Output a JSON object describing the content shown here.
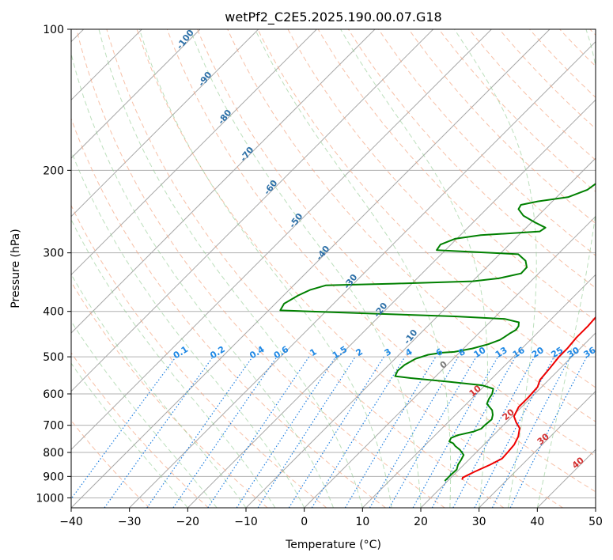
{
  "chart_data": {
    "type": "line",
    "title": "wetPf2_C2E5.2025.190.00.07.G18",
    "xlabel": "Temperature (°C)",
    "ylabel": "Pressure (hPa)",
    "xlim": [
      -40,
      50
    ],
    "ylim": [
      1050,
      100
    ],
    "y_scale": "log",
    "x_ticks": [
      "−40",
      "−30",
      "−20",
      "−10",
      "0",
      "10",
      "20",
      "30",
      "40",
      "50"
    ],
    "x_tick_values": [
      -40,
      -30,
      -20,
      -10,
      0,
      10,
      20,
      30,
      40,
      50
    ],
    "y_ticks": [
      "100",
      "200",
      "300",
      "400",
      "500",
      "600",
      "700",
      "800",
      "900",
      "1000"
    ],
    "y_tick_values": [
      100,
      200,
      300,
      400,
      500,
      600,
      700,
      800,
      900,
      1000
    ],
    "grid": true,
    "series": [
      {
        "role": "temperature",
        "color": "#ee0000",
        "points": [
          [
            22.3,
            915
          ],
          [
            22,
            905
          ],
          [
            23,
            880
          ],
          [
            24.5,
            850
          ],
          [
            25.5,
            825
          ],
          [
            25.4,
            800
          ],
          [
            25.2,
            770
          ],
          [
            24.5,
            740
          ],
          [
            23.3,
            710
          ],
          [
            21.7,
            690
          ],
          [
            20.3,
            670
          ],
          [
            19.5,
            640
          ],
          [
            19.5,
            610
          ],
          [
            19.3,
            580
          ],
          [
            18.5,
            560
          ],
          [
            18.2,
            530
          ],
          [
            17.8,
            500
          ],
          [
            17.8,
            480
          ],
          [
            17.5,
            455
          ],
          [
            17.5,
            430
          ],
          [
            17.3,
            410
          ],
          [
            17.8,
            398
          ],
          [
            17.8,
            390
          ],
          [
            17.2,
            380
          ],
          [
            16.2,
            370
          ],
          [
            15,
            358
          ],
          [
            13.7,
            345
          ],
          [
            12.7,
            332
          ],
          [
            11.7,
            318
          ],
          [
            10.8,
            300
          ],
          [
            10.2,
            285
          ],
          [
            9.6,
            270
          ],
          [
            8.8,
            255
          ],
          [
            7.8,
            243
          ],
          [
            6.8,
            232
          ],
          [
            5.8,
            222
          ],
          [
            4.9,
            212
          ],
          [
            4.1,
            202
          ],
          [
            3.2,
            193
          ],
          [
            2.5,
            185
          ],
          [
            1.8,
            177
          ],
          [
            1.3,
            170
          ],
          [
            0.8,
            163
          ],
          [
            0.3,
            155
          ],
          [
            -0.2,
            148
          ],
          [
            -0.6,
            142
          ],
          [
            -1.2,
            136
          ],
          [
            -1.6,
            130
          ],
          [
            -1.6,
            125
          ],
          [
            -1.1,
            120
          ],
          [
            -0.1,
            116
          ],
          [
            1.4,
            112
          ],
          [
            3.1,
            109
          ],
          [
            4.9,
            106
          ],
          [
            6.3,
            103
          ],
          [
            7.2,
            100
          ]
        ]
      },
      {
        "role": "dewpoint",
        "color": "#008000",
        "points": [
          [
            19.5,
            920
          ],
          [
            19.5,
            905
          ],
          [
            19.5,
            890
          ],
          [
            19.6,
            870
          ],
          [
            19,
            850
          ],
          [
            18.7,
            830
          ],
          [
            18.3,
            810
          ],
          [
            16.8,
            790
          ],
          [
            15.3,
            775
          ],
          [
            14.5,
            765
          ],
          [
            13.5,
            758
          ],
          [
            13.2,
            745
          ],
          [
            13.9,
            735
          ],
          [
            16,
            722
          ],
          [
            16.8,
            712
          ],
          [
            16.8,
            700
          ],
          [
            17,
            680
          ],
          [
            16.4,
            665
          ],
          [
            15.5,
            650
          ],
          [
            14.5,
            640
          ],
          [
            13.5,
            630
          ],
          [
            13,
            615
          ],
          [
            12.7,
            600
          ],
          [
            12,
            585
          ],
          [
            9.5,
            575
          ],
          [
            3,
            565
          ],
          [
            -4,
            555
          ],
          [
            -7,
            550
          ],
          [
            -7.5,
            535
          ],
          [
            -7.3,
            520
          ],
          [
            -6.5,
            505
          ],
          [
            -5,
            495
          ],
          [
            -3,
            490
          ],
          [
            -1,
            488
          ],
          [
            1.5,
            480
          ],
          [
            3.5,
            470
          ],
          [
            4.8,
            460
          ],
          [
            5.4,
            445
          ],
          [
            5.8,
            438
          ],
          [
            5.6,
            430
          ],
          [
            5,
            422
          ],
          [
            2,
            415
          ],
          [
            -7,
            410
          ],
          [
            -20,
            405
          ],
          [
            -38,
            398
          ],
          [
            -38.5,
            385
          ],
          [
            -37.5,
            370
          ],
          [
            -36.4,
            360
          ],
          [
            -34.5,
            352
          ],
          [
            -23,
            349
          ],
          [
            -10,
            345
          ],
          [
            -6,
            340
          ],
          [
            -3,
            332
          ],
          [
            -3.1,
            322
          ],
          [
            -4.4,
            312
          ],
          [
            -6.8,
            302
          ],
          [
            -21.5,
            296
          ],
          [
            -21.8,
            288
          ],
          [
            -20.3,
            280
          ],
          [
            -16.5,
            275
          ],
          [
            -7,
            270
          ],
          [
            -6.7,
            265
          ],
          [
            -9.5,
            258
          ],
          [
            -12.5,
            250
          ],
          [
            -14.5,
            242
          ],
          [
            -14.8,
            237
          ],
          [
            -12.5,
            233
          ],
          [
            -8,
            228
          ],
          [
            -6,
            220
          ],
          [
            -5.5,
            212
          ],
          [
            -5,
            205
          ],
          [
            -4.4,
            197
          ],
          [
            -3.3,
            188
          ],
          [
            -2.7,
            180
          ],
          [
            -2.3,
            172
          ],
          [
            -2.3,
            165
          ],
          [
            -3.1,
            158
          ],
          [
            -4.4,
            153
          ],
          [
            -5.5,
            148
          ],
          [
            -5.9,
            143
          ],
          [
            -5.9,
            138
          ],
          [
            -5.7,
            133
          ],
          [
            -5,
            129
          ],
          [
            -4.2,
            125
          ],
          [
            -3.3,
            121
          ],
          [
            -3.6,
            117
          ],
          [
            -3.6,
            113
          ],
          [
            -2.7,
            110
          ],
          [
            -1.8,
            107
          ],
          [
            -1.6,
            104
          ],
          [
            -1.4,
            100
          ]
        ]
      }
    ],
    "mixing_ratio_labels": [
      "0.1",
      "0.2",
      "0.4",
      "0.6",
      "1",
      "1.5",
      "2",
      "3",
      "4",
      "6",
      "8",
      "10",
      "13",
      "16",
      "20",
      "25",
      "30",
      "36"
    ],
    "mixing_ratio_values": [
      0.1,
      0.2,
      0.4,
      0.6,
      1,
      1.5,
      2,
      3,
      4,
      6,
      8,
      10,
      13,
      16,
      20,
      25,
      30,
      36
    ],
    "moist_adiabat_labels": [
      "0",
      "10",
      "20",
      "30",
      "40"
    ],
    "moist_adiabat_values": [
      0,
      10,
      20,
      30,
      40
    ],
    "dry_adiabat_labels": [
      "-100",
      "-90",
      "-80",
      "-70",
      "-60",
      "-50",
      "-40",
      "-30",
      "-20",
      "-10"
    ],
    "dry_adiabat_values": [
      -100,
      -90,
      -80,
      -70,
      -60,
      -50,
      -40,
      -30,
      -20,
      -10
    ]
  }
}
